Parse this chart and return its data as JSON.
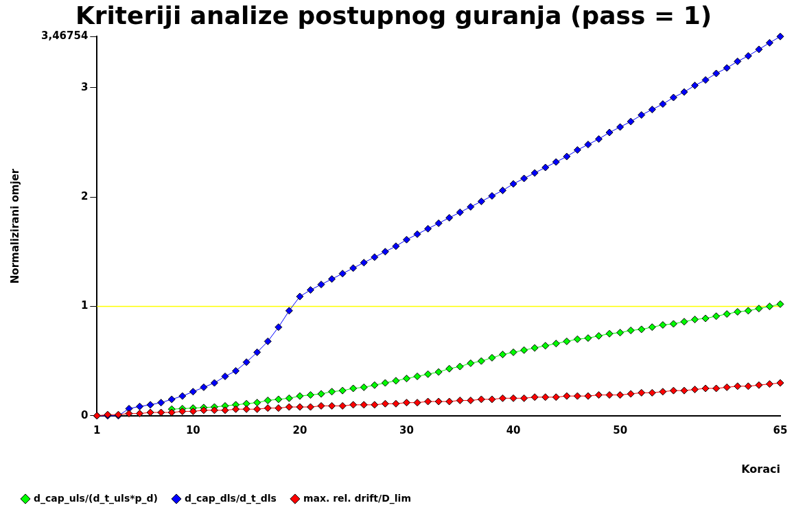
{
  "chart_data": {
    "type": "line",
    "title": "Kriteriji analize postupnog guranja (pass = 1)",
    "xlabel": "Koraci",
    "ylabel": "Normalizirani omjer",
    "x": [
      1,
      2,
      3,
      4,
      5,
      6,
      7,
      8,
      9,
      10,
      11,
      12,
      13,
      14,
      15,
      16,
      17,
      18,
      19,
      20,
      21,
      22,
      23,
      24,
      25,
      26,
      27,
      28,
      29,
      30,
      31,
      32,
      33,
      34,
      35,
      36,
      37,
      38,
      39,
      40,
      41,
      42,
      43,
      44,
      45,
      46,
      47,
      48,
      49,
      50,
      51,
      52,
      53,
      54,
      55,
      56,
      57,
      58,
      59,
      60,
      61,
      62,
      63,
      64,
      65
    ],
    "xlim": [
      1,
      65
    ],
    "xticks": [
      1,
      10,
      20,
      30,
      40,
      50,
      65
    ],
    "ylim": [
      0,
      3.46754
    ],
    "yticks": [
      0,
      1,
      2,
      3,
      {
        "value": 3.46754,
        "label": "3,46754"
      }
    ],
    "grid": false,
    "legend": "bottom left",
    "marker": "diamond",
    "line_style": "solid",
    "ref_lines": [
      {
        "axis": "y",
        "value": 1,
        "color": "#ffff00"
      }
    ],
    "series": [
      {
        "name": "d_cap_uls/(d_t_uls*p_d)",
        "color": "#00ff00",
        "values": [
          null,
          null,
          null,
          null,
          null,
          null,
          null,
          0.06,
          0.065,
          0.07,
          0.075,
          0.08,
          0.09,
          0.1,
          0.11,
          0.12,
          0.14,
          0.15,
          0.16,
          0.18,
          0.19,
          0.2,
          0.22,
          0.23,
          0.25,
          0.26,
          0.28,
          0.3,
          0.32,
          0.34,
          0.36,
          0.38,
          0.4,
          0.43,
          0.45,
          0.48,
          0.5,
          0.53,
          0.56,
          0.58,
          0.6,
          0.62,
          0.64,
          0.66,
          0.68,
          0.7,
          0.71,
          0.73,
          0.75,
          0.76,
          0.78,
          0.79,
          0.81,
          0.83,
          0.84,
          0.86,
          0.88,
          0.89,
          0.91,
          0.93,
          0.95,
          0.96,
          0.98,
          1.0,
          1.02
        ]
      },
      {
        "name": "d_cap_dls/d_t_dls",
        "color": "#0000ff",
        "values": [
          0,
          0,
          0,
          0.065,
          0.085,
          0.1,
          0.12,
          0.15,
          0.18,
          0.22,
          0.26,
          0.3,
          0.36,
          0.41,
          0.49,
          0.58,
          0.68,
          0.81,
          0.96,
          1.09,
          1.15,
          1.2,
          1.25,
          1.3,
          1.35,
          1.4,
          1.45,
          1.5,
          1.55,
          1.61,
          1.66,
          1.71,
          1.76,
          1.81,
          1.86,
          1.91,
          1.96,
          2.01,
          2.06,
          2.12,
          2.17,
          2.22,
          2.27,
          2.32,
          2.37,
          2.43,
          2.48,
          2.53,
          2.59,
          2.64,
          2.69,
          2.75,
          2.8,
          2.85,
          2.91,
          2.96,
          3.02,
          3.07,
          3.13,
          3.18,
          3.24,
          3.29,
          3.35,
          3.41,
          3.46754
        ]
      },
      {
        "name": "max. rel. drift/D_lim",
        "color": "#ff0000",
        "values": [
          0,
          0.01,
          0.01,
          0.02,
          0.02,
          0.03,
          0.03,
          0.03,
          0.04,
          0.04,
          0.05,
          0.05,
          0.05,
          0.06,
          0.06,
          0.06,
          0.07,
          0.07,
          0.08,
          0.08,
          0.08,
          0.09,
          0.09,
          0.09,
          0.1,
          0.1,
          0.1,
          0.11,
          0.11,
          0.12,
          0.12,
          0.13,
          0.13,
          0.13,
          0.14,
          0.14,
          0.15,
          0.15,
          0.16,
          0.16,
          0.16,
          0.17,
          0.17,
          0.17,
          0.18,
          0.18,
          0.18,
          0.19,
          0.19,
          0.19,
          0.2,
          0.21,
          0.21,
          0.22,
          0.23,
          0.23,
          0.24,
          0.25,
          0.25,
          0.26,
          0.27,
          0.27,
          0.28,
          0.29,
          0.3
        ]
      }
    ]
  }
}
